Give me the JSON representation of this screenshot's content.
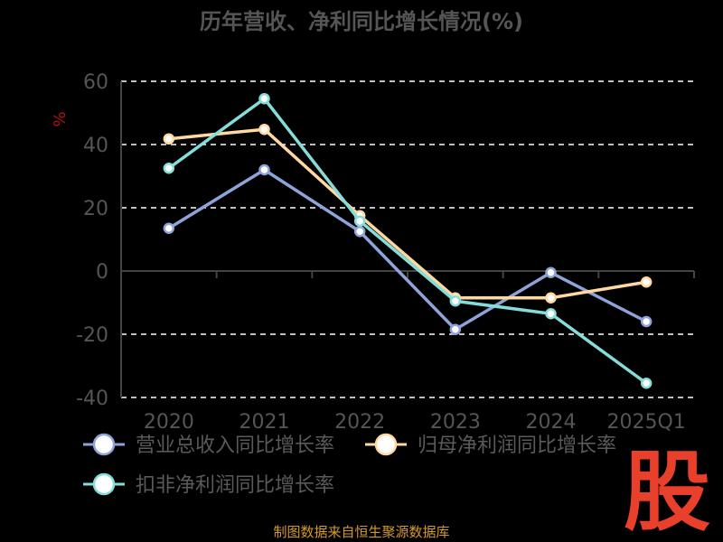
{
  "chart_data": {
    "type": "line",
    "title": "历年营收、净利同比增长情况(%)",
    "ylabel": "%",
    "xlabel": "",
    "categories": [
      "2020",
      "2021",
      "2022",
      "2023",
      "2024",
      "2025Q1"
    ],
    "yticks": [
      60,
      40,
      20,
      0,
      -20,
      -40
    ],
    "ylim": [
      -40,
      60
    ],
    "grid": true,
    "legend_position": "bottom",
    "series": [
      {
        "name": "营业总收入同比增长率",
        "values": [
          13.5,
          32.0,
          12.5,
          -18.5,
          -0.5,
          -16.0
        ],
        "color": "#8ea4d9"
      },
      {
        "name": "归母净利润同比增长率",
        "values": [
          41.8,
          44.8,
          17.5,
          -8.5,
          -8.5,
          -3.5
        ],
        "color": "#ffd9a0"
      },
      {
        "name": "扣非净利润同比增长率",
        "values": [
          32.5,
          54.5,
          15.8,
          -9.5,
          -13.5,
          -35.5
        ],
        "color": "#85ddd9"
      }
    ]
  },
  "footer": {
    "source": "制图数据来自恒生聚源数据库"
  },
  "watermark": {
    "text": "股",
    "color": "#e8402a"
  },
  "colors": {
    "background": "#000000",
    "grid": "#ffffff",
    "axis": "#444444",
    "tick_text": "#555555",
    "source_text": "#d59a2c"
  }
}
